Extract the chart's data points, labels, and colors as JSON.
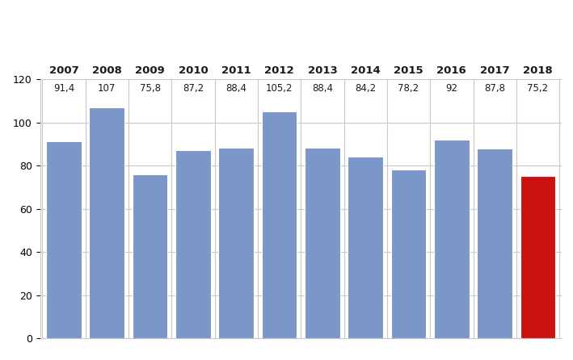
{
  "years": [
    "2007",
    "2008",
    "2009",
    "2010",
    "2011",
    "2012",
    "2013",
    "2014",
    "2015",
    "2016",
    "2017",
    "2018"
  ],
  "values": [
    91.4,
    107,
    75.8,
    87.2,
    88.4,
    105.2,
    88.4,
    84.2,
    78.2,
    92,
    87.8,
    75.2
  ],
  "labels": [
    "91,4",
    "107",
    "75,8",
    "87,2",
    "88,4",
    "105,2",
    "88,4",
    "84,2",
    "78,2",
    "92",
    "87,8",
    "75,2"
  ],
  "bar_colors": [
    "#7b96c8",
    "#7b96c8",
    "#7b96c8",
    "#7b96c8",
    "#7b96c8",
    "#7b96c8",
    "#7b96c8",
    "#7b96c8",
    "#7b96c8",
    "#7b96c8",
    "#7b96c8",
    "#cc1111"
  ],
  "ylim": [
    0,
    120
  ],
  "yticks": [
    0,
    20,
    40,
    60,
    80,
    100,
    120
  ],
  "bar_edge_color": "#ffffff",
  "background_color": "#ffffff",
  "grid_color": "#c8c8c8",
  "label_fontsize": 8.5,
  "year_fontsize": 9.5,
  "tick_fontsize": 9,
  "value_label_fontsize": 8.5
}
